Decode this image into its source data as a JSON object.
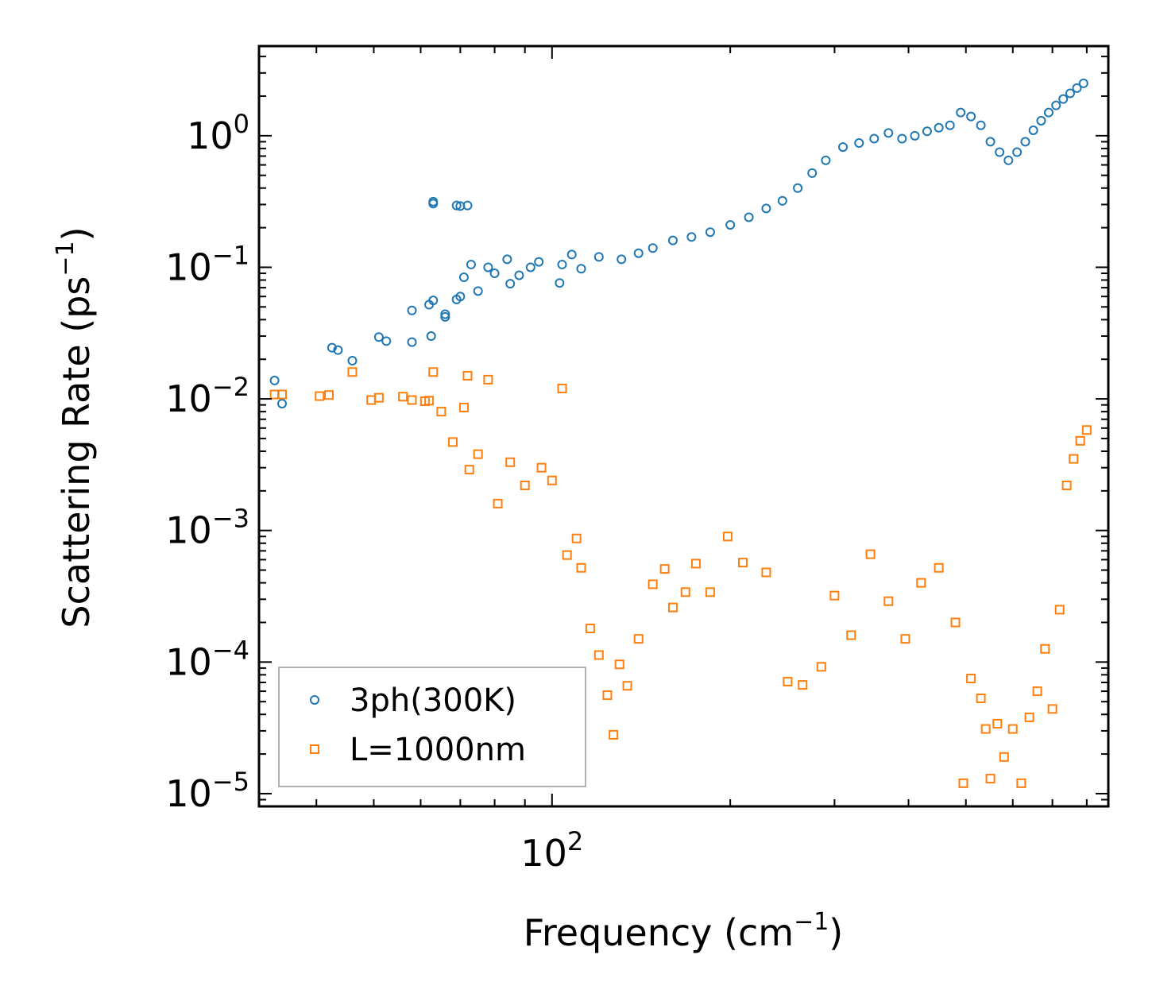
{
  "chart_data": {
    "type": "scatter",
    "x_scale": "log",
    "y_scale": "log",
    "xlabel": {
      "text": "Frequency (cm",
      "sup": "−1",
      "suffix": ")"
    },
    "ylabel": {
      "text": "Scattering Rate (ps",
      "sup": "−1",
      "suffix": ")"
    },
    "xlim": [
      32,
      870
    ],
    "ylim": [
      8e-06,
      4.8
    ],
    "x_ticks": [
      {
        "base": "10",
        "exp": "2",
        "value": 100
      }
    ],
    "y_ticks": [
      {
        "base": "10",
        "exp": "−5",
        "value": 1e-05
      },
      {
        "base": "10",
        "exp": "−4",
        "value": 0.0001
      },
      {
        "base": "10",
        "exp": "−3",
        "value": 0.001
      },
      {
        "base": "10",
        "exp": "−2",
        "value": 0.01
      },
      {
        "base": "10",
        "exp": "−1",
        "value": 0.1
      },
      {
        "base": "10",
        "exp": "0",
        "value": 1
      }
    ],
    "legend_position": "lower-left",
    "series": [
      {
        "name": "3ph(300K)",
        "marker": "circle",
        "color": "#1f77b4",
        "points": [
          [
            34,
            0.0138
          ],
          [
            35,
            0.0092
          ],
          [
            42.5,
            0.0245
          ],
          [
            43.5,
            0.0235
          ],
          [
            46,
            0.0195
          ],
          [
            51,
            0.0295
          ],
          [
            52.5,
            0.0275
          ],
          [
            58,
            0.047
          ],
          [
            58,
            0.027
          ],
          [
            62,
            0.052
          ],
          [
            63,
            0.056
          ],
          [
            62.5,
            0.03
          ],
          [
            66,
            0.044
          ],
          [
            66,
            0.042
          ],
          [
            63,
            0.305
          ],
          [
            63,
            0.315
          ],
          [
            69,
            0.057
          ],
          [
            70,
            0.06
          ],
          [
            71,
            0.084
          ],
          [
            73,
            0.105
          ],
          [
            69,
            0.295
          ],
          [
            70,
            0.292
          ],
          [
            72,
            0.295
          ],
          [
            75,
            0.066
          ],
          [
            80,
            0.09
          ],
          [
            78,
            0.1
          ],
          [
            84,
            0.115
          ],
          [
            85,
            0.075
          ],
          [
            88,
            0.087
          ],
          [
            92,
            0.1
          ],
          [
            95,
            0.11
          ],
          [
            103,
            0.076
          ],
          [
            104,
            0.105
          ],
          [
            108,
            0.125
          ],
          [
            112,
            0.0975
          ],
          [
            120,
            0.12
          ],
          [
            131,
            0.115
          ],
          [
            140,
            0.128
          ],
          [
            148,
            0.14
          ],
          [
            160,
            0.16
          ],
          [
            172,
            0.17
          ],
          [
            185,
            0.185
          ],
          [
            200,
            0.21
          ],
          [
            215,
            0.24
          ],
          [
            230,
            0.28
          ],
          [
            245,
            0.32
          ],
          [
            260,
            0.4
          ],
          [
            275,
            0.52
          ],
          [
            290,
            0.65
          ],
          [
            310,
            0.82
          ],
          [
            330,
            0.88
          ],
          [
            350,
            0.95
          ],
          [
            370,
            1.05
          ],
          [
            390,
            0.95
          ],
          [
            410,
            1.0
          ],
          [
            430,
            1.08
          ],
          [
            450,
            1.15
          ],
          [
            470,
            1.2
          ],
          [
            490,
            1.5
          ],
          [
            510,
            1.4
          ],
          [
            530,
            1.2
          ],
          [
            550,
            0.9
          ],
          [
            570,
            0.75
          ],
          [
            590,
            0.65
          ],
          [
            610,
            0.75
          ],
          [
            630,
            0.9
          ],
          [
            650,
            1.1
          ],
          [
            670,
            1.3
          ],
          [
            690,
            1.5
          ],
          [
            710,
            1.7
          ],
          [
            730,
            1.9
          ],
          [
            750,
            2.1
          ],
          [
            770,
            2.3
          ],
          [
            790,
            2.5
          ]
        ]
      },
      {
        "name": "L=1000nm",
        "marker": "square",
        "color": "#ff7f0e",
        "points": [
          [
            34,
            0.0108
          ],
          [
            35,
            0.0108
          ],
          [
            40.5,
            0.0105
          ],
          [
            42,
            0.0107
          ],
          [
            46,
            0.016
          ],
          [
            49.5,
            0.0098
          ],
          [
            51,
            0.0102
          ],
          [
            56,
            0.0104
          ],
          [
            58,
            0.0098
          ],
          [
            61,
            0.0096
          ],
          [
            62,
            0.0097
          ],
          [
            63,
            0.016
          ],
          [
            65,
            0.008
          ],
          [
            68,
            0.0047
          ],
          [
            71,
            0.0086
          ],
          [
            72,
            0.015
          ],
          [
            72.5,
            0.0029
          ],
          [
            75,
            0.0038
          ],
          [
            78,
            0.014
          ],
          [
            81,
            0.0016
          ],
          [
            85,
            0.0033
          ],
          [
            90,
            0.0022
          ],
          [
            96,
            0.003
          ],
          [
            100,
            0.0024
          ],
          [
            104,
            0.012
          ],
          [
            106,
            0.00065
          ],
          [
            110,
            0.00087
          ],
          [
            112,
            0.00052
          ],
          [
            116,
            0.00018
          ],
          [
            120,
            0.000113
          ],
          [
            124,
            5.6e-05
          ],
          [
            127,
            2.8e-05
          ],
          [
            130,
            9.6e-05
          ],
          [
            134,
            6.6e-05
          ],
          [
            140,
            0.00015
          ],
          [
            148,
            0.00039
          ],
          [
            155,
            0.00051
          ],
          [
            160,
            0.00026
          ],
          [
            168,
            0.00034
          ],
          [
            175,
            0.00056
          ],
          [
            185,
            0.00034
          ],
          [
            198,
            0.0009
          ],
          [
            210,
            0.00057
          ],
          [
            230,
            0.00048
          ],
          [
            250,
            7.1e-05
          ],
          [
            265,
            6.7e-05
          ],
          [
            285,
            9.2e-05
          ],
          [
            300,
            0.00032
          ],
          [
            320,
            0.00016
          ],
          [
            345,
            0.00066
          ],
          [
            370,
            0.00029
          ],
          [
            395,
            0.00015
          ],
          [
            420,
            0.0004
          ],
          [
            450,
            0.00052
          ],
          [
            480,
            0.0002
          ],
          [
            495,
            1.2e-05
          ],
          [
            510,
            7.5e-05
          ],
          [
            530,
            5.3e-05
          ],
          [
            540,
            3.1e-05
          ],
          [
            550,
            1.3e-05
          ],
          [
            565,
            3.4e-05
          ],
          [
            580,
            1.9e-05
          ],
          [
            600,
            3.1e-05
          ],
          [
            620,
            1.2e-05
          ],
          [
            640,
            3.8e-05
          ],
          [
            660,
            6e-05
          ],
          [
            680,
            0.000126
          ],
          [
            700,
            4.4e-05
          ],
          [
            720,
            0.00025
          ],
          [
            740,
            0.0022
          ],
          [
            760,
            0.0035
          ],
          [
            780,
            0.0048
          ],
          [
            800,
            0.0058
          ]
        ]
      }
    ]
  }
}
